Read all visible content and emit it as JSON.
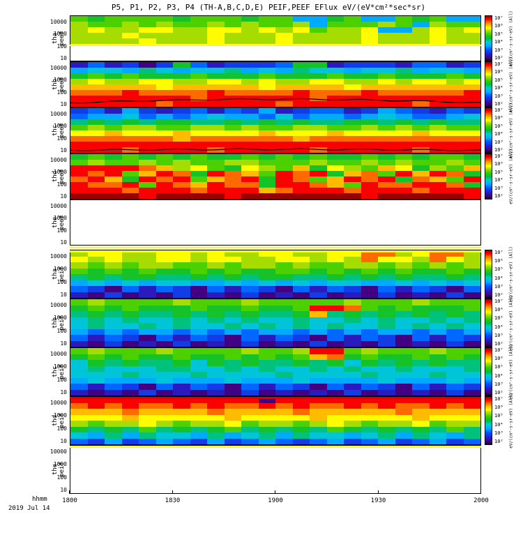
{
  "chart_data": {
    "type": "heatmap",
    "title": "P5, P1, P2, P3, P4 (TH-A,B,C,D,E) PEIF,PEEF EFlux eV/(eV*cm²*sec*sr)",
    "x": {
      "label": "hhmm",
      "date": "2019 Jul 14",
      "ticks": [
        "1800",
        "1830",
        "1900",
        "1930",
        "2000"
      ],
      "range": [
        "1800",
        "2000"
      ]
    },
    "y": {
      "ticks": [
        "10000",
        "1000",
        "100",
        "10"
      ],
      "scale": "log",
      "range_ev": [
        5,
        30000
      ]
    },
    "colorbar": {
      "label": "eV/(cm²-s-sr-eV) (All)"
    },
    "grid_encoding": "each panel: 8 energy rows (top=10000 eV, bottom=10 eV) x 24 time bins (1800-2000); hex char 0-f = relative log10 EFlux from colorbar min to max; '.' = no data (white)",
    "panels": [
      {
        "id": "tha_peef",
        "label": [
          "tha",
          "peef"
        ],
        "empty": false,
        "top_line": null,
        "cb_exponents": [
          7,
          6,
          5,
          4,
          3,
          2
        ],
        "overlays": [
          {
            "type": "hline",
            "frac": 0.63,
            "color": "#ffff00"
          }
        ],
        "grid": [
          "989999899989955895598955",
          "a99a9a99a9a99a5999a95a99",
          "abaabbaabbabab9aab55abab",
          "aaabaaaabaaabaaaabaaabaa",
          "aaaabaaabaaabaaaabaaabaa",
          "........................",
          "........................",
          "........................"
        ]
      },
      {
        "id": "thb_peef",
        "label": [
          "thb",
          "peef"
        ],
        "empty": false,
        "top_line": null,
        "cb_exponents": [
          7,
          6,
          5,
          4,
          3,
          2
        ],
        "overlays": [
          {
            "type": "trace",
            "base": 0.9,
            "amp": 0.08,
            "color": "#000000"
          }
        ],
        "grid": [
          "242313842333488233324423",
          "566576566756576656675665",
          "898988898889888988988898",
          "abaabbaabbabaabbaababbab",
          "cccccbcccccbccccbccccccc",
          "dddeddddeddddedddeddddde",
          "eeeeeeedeeeeeedeeeeeeeee",
          "eeeeedeeeeeedeeeeeeedeee"
        ]
      },
      {
        "id": "thc_peef",
        "label": [
          "thc",
          "peef"
        ],
        "empty": false,
        "top_line": null,
        "cb_exponents": [
          7,
          6,
          5,
          4,
          3,
          2
        ],
        "overlays": [
          {
            "type": "trace",
            "base": 0.93,
            "amp": 0.02,
            "color": "#000000"
          }
        ],
        "grid": [
          "342532342435234423543243",
          "455645456554645545654456",
          "787878877878787788787877",
          "9a9aa99aa9a99aa99a9a9a99",
          "bbcbbbcbbbbcbbbcbbbbcbbb",
          "ddddddcddddddcdddddddddd",
          "eeeeeeeeeeeeeeeeeeeeeeee",
          "eeedeeeedeeeeedeeeeedeee"
        ]
      },
      {
        "id": "thd_peef",
        "label": [
          "thd",
          "peef"
        ],
        "empty": false,
        "top_line": null,
        "cb_exponents": [
          7,
          6,
          5,
          4,
          3,
          2
        ],
        "overlays": [],
        "grid": [
          "898989898898989889898998",
          "9a99a9a99aa999a99a9a99a9",
          "eeeedcab98ba9c8ba9cb8a9c",
          "ede9ced8edc9ede8cd9eced8",
          "dec8ede9cde8ed9cede8dc9e",
          "edde9edcedd8eedc9eddeed8",
          "eeedeeedeeecdeeedeeedeee",
          "ffffeffffefffffffefffffe"
        ]
      },
      {
        "id": "the_peef",
        "label": [
          "the",
          "peef"
        ],
        "empty": true,
        "top_line": null,
        "cb_exponents": [],
        "overlays": [],
        "grid": []
      },
      {
        "id": "tha_peif",
        "label": [
          "tha",
          "peif"
        ],
        "empty": false,
        "top_line": "#ffff00",
        "cb_exponents": [
          7,
          6,
          5,
          4,
          3,
          2
        ],
        "overlays": [],
        "grid": [
          "abbaabbabaabbaabbddabdda",
          "babaabbabbaabbabadbbadba",
          "a9a9aa99a9aa9a99aa9a9a9a",
          "989898898988998989898898",
          "787887787878877878787787",
          "565656655656565665565656",
          "431424314243142431424314",
          "213121312131213121312131"
        ]
      },
      {
        "id": "thb_peif",
        "label": [
          "thb",
          "peif"
        ],
        "empty": false,
        "top_line": null,
        "cb_exponents": [
          7,
          6,
          5,
          4,
          3,
          2
        ],
        "overlays": [],
        "grid": [
          "9a9999a999a99999a999a999",
          "89898889889889eed9898889",
          "78787787878778c787878787",
          "676766767676676676766767",
          "676676766767676766767676",
          "545455454545545454554545",
          "424314243142431424314243",
          "213121312131213121312131"
        ]
      },
      {
        "id": "thc_peif",
        "label": [
          "thc",
          "peif"
        ],
        "empty": false,
        "top_line": null,
        "cb_exponents": [
          7,
          6,
          5,
          4,
          3,
          2
        ],
        "overlays": [],
        "grid": [
          "9a999a9999a99aee9a999a99",
          "89898898898989cd89889898",
          "687877868787787868787877",
          "676667766767667676676667",
          "666766676666766667666766",
          "565556555655565555655565",
          "424314243142431424314243",
          "212131212131212131212131"
        ]
      },
      {
        "id": "thd_peif",
        "label": [
          "thd",
          "peif"
        ],
        "empty": false,
        "top_line": "#dd0000",
        "cb_exponents": [
          7,
          6,
          5,
          4,
          3,
          2
        ],
        "overlays": [],
        "grid": [
          "eeeeeeeeeee1eeeeeeeeeeee",
          "dededdededdededdededdede",
          "cccdccccdccccdcccccdcccc",
          "bbbcbbbbbcbbbbcbbbbbcbbb",
          "a9aaba9aab9aa9aba9aab9aa",
          "878797878978787987878797",
          "657576657567576656757657",
          "435345435345434534534534"
        ]
      },
      {
        "id": "the_peif",
        "label": [
          "the",
          "peif"
        ],
        "empty": true,
        "top_line": "#ffff00",
        "cb_exponents": [],
        "overlays": [],
        "grid": []
      }
    ]
  },
  "colormap": {
    "stops": [
      [
        0.0,
        "#14001e"
      ],
      [
        0.07,
        "#440088"
      ],
      [
        0.15,
        "#2222cc"
      ],
      [
        0.25,
        "#0055ff"
      ],
      [
        0.33,
        "#00aaff"
      ],
      [
        0.42,
        "#00cccc"
      ],
      [
        0.5,
        "#00bb44"
      ],
      [
        0.58,
        "#33cc00"
      ],
      [
        0.67,
        "#aadd00"
      ],
      [
        0.73,
        "#ffff00"
      ],
      [
        0.8,
        "#ffbb00"
      ],
      [
        0.87,
        "#ff6600"
      ],
      [
        0.93,
        "#ff0000"
      ],
      [
        1.0,
        "#990000"
      ]
    ]
  }
}
